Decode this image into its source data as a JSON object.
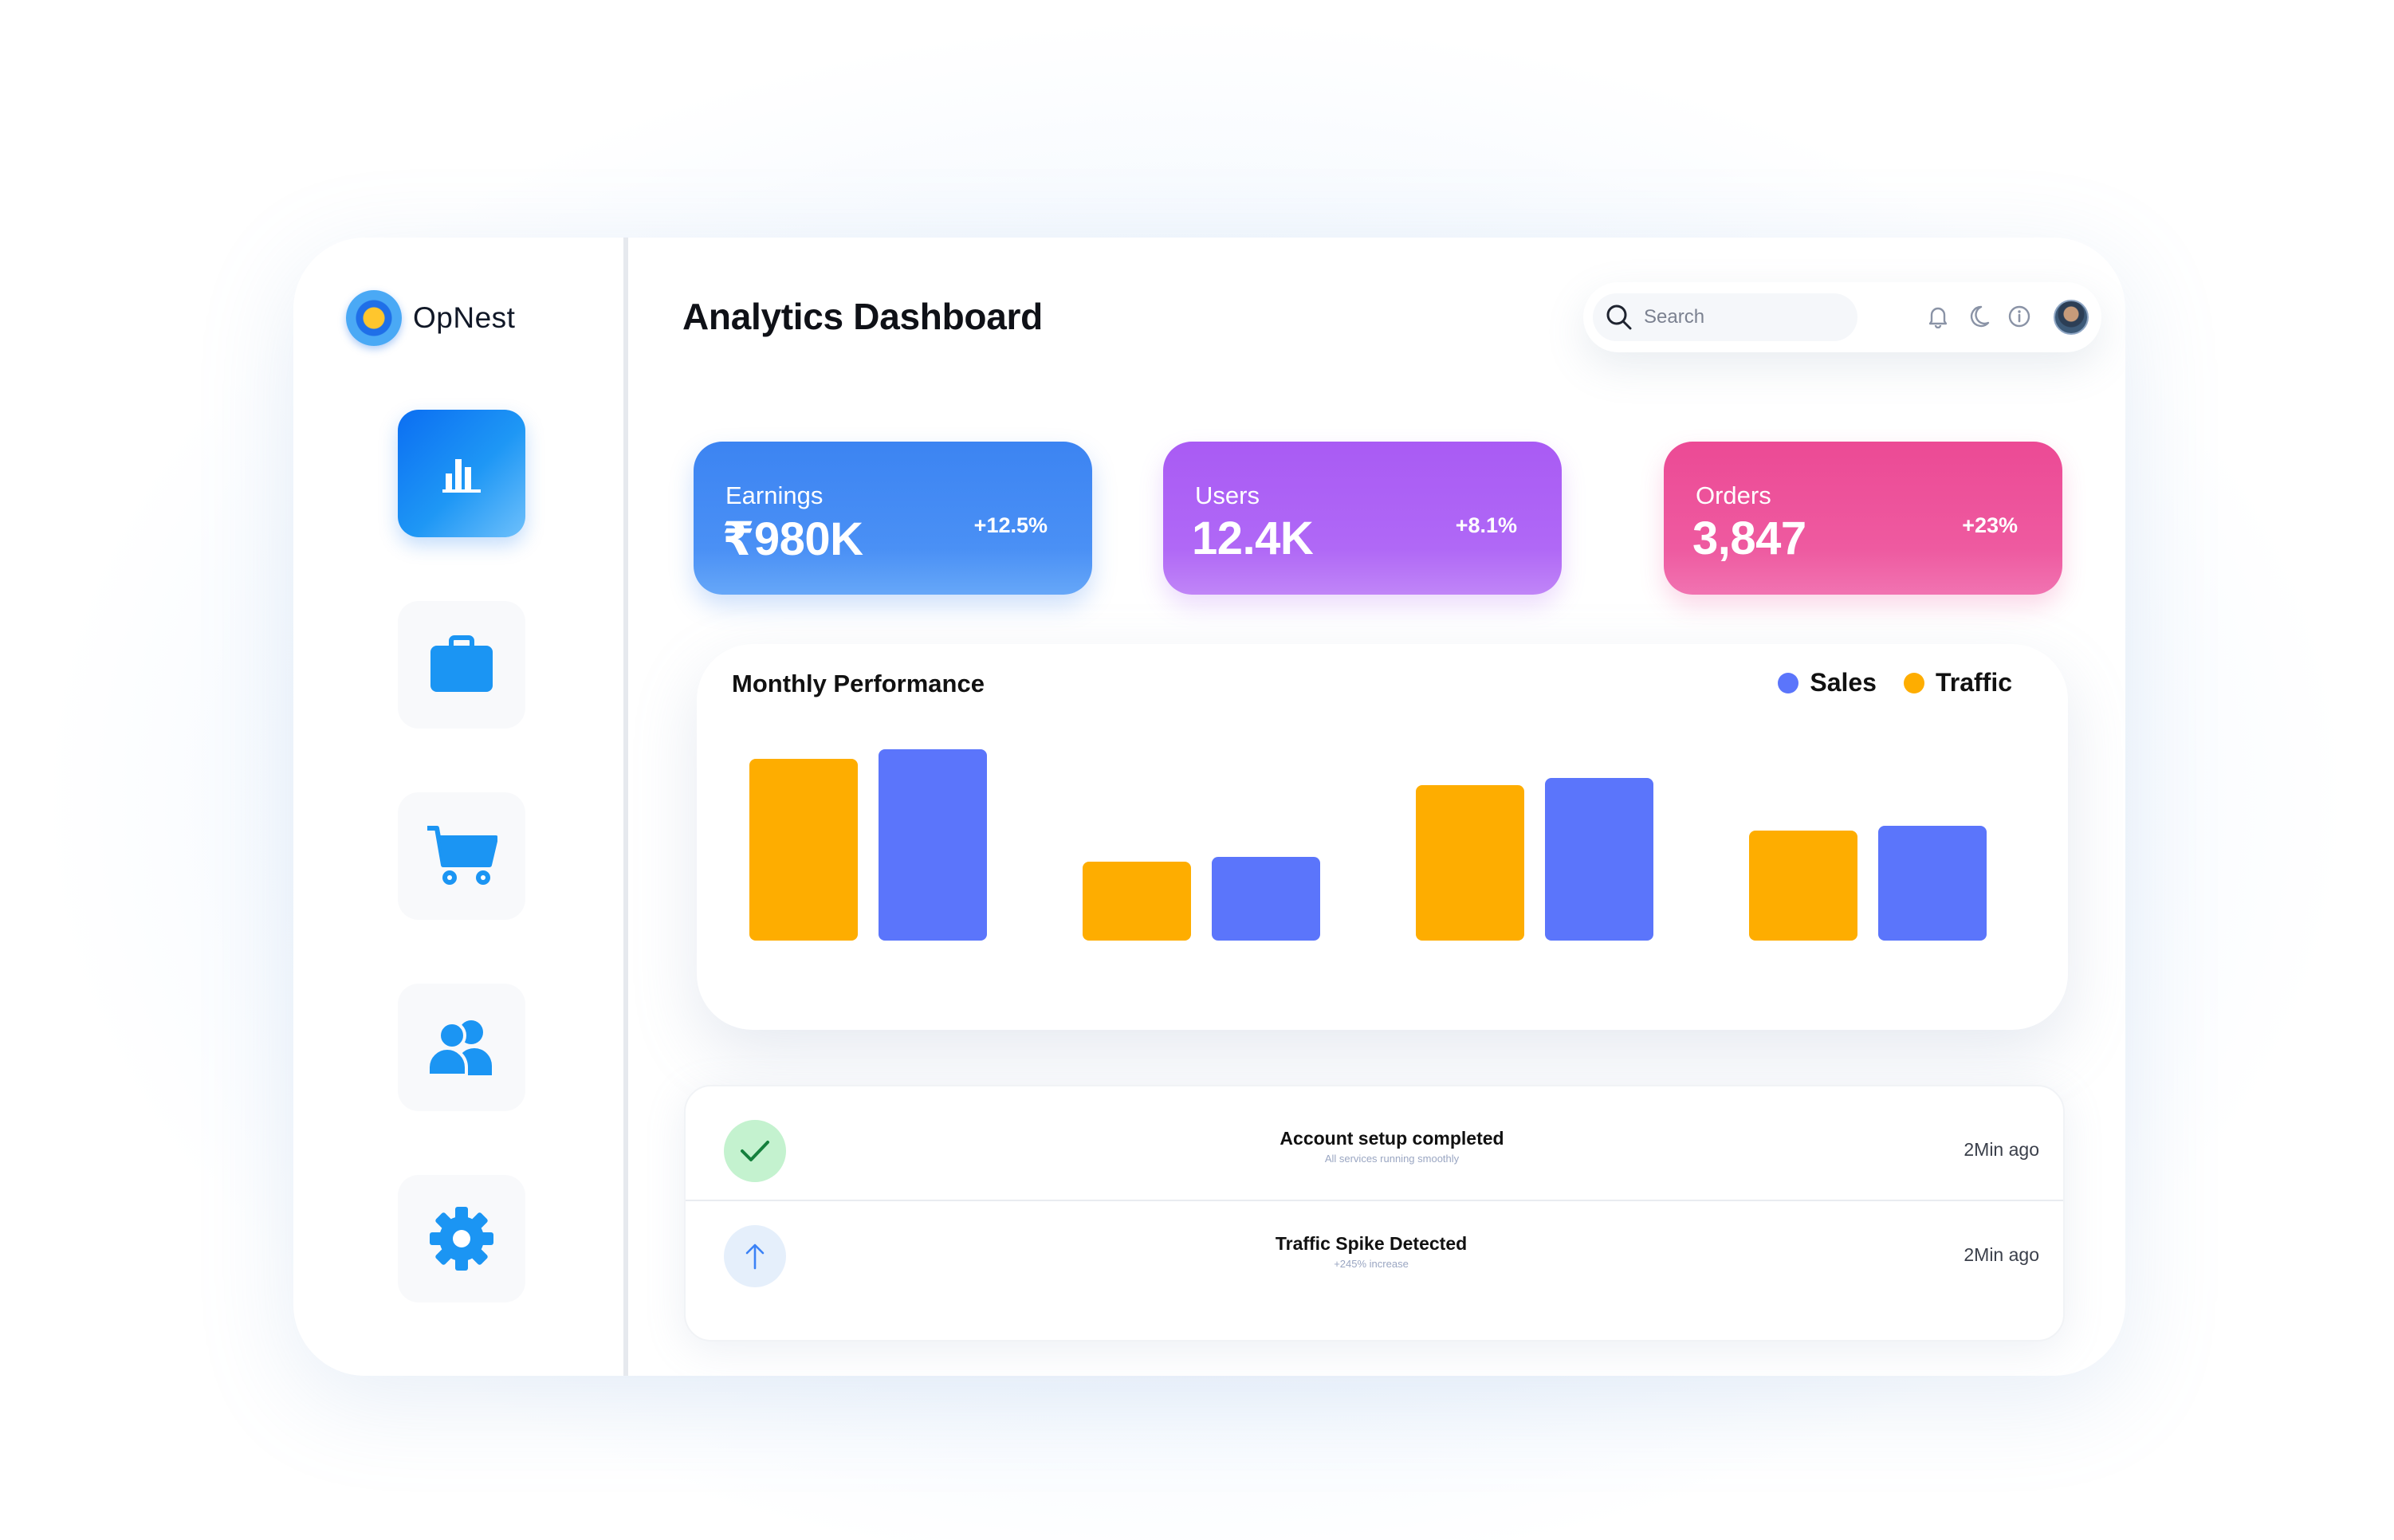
{
  "brand": {
    "name": "OpNest"
  },
  "sidebar": {
    "items": [
      {
        "name": "analytics",
        "icon": "bar-chart-icon",
        "active": true
      },
      {
        "name": "portfolio",
        "icon": "briefcase-icon",
        "active": false
      },
      {
        "name": "orders",
        "icon": "cart-icon",
        "active": false
      },
      {
        "name": "users",
        "icon": "users-icon",
        "active": false
      },
      {
        "name": "settings",
        "icon": "gear-icon",
        "active": false
      }
    ]
  },
  "header": {
    "title": "Analytics Dashboard",
    "search_placeholder": "Search",
    "icons": [
      "bell-icon",
      "moon-icon",
      "info-icon",
      "avatar"
    ]
  },
  "stats": [
    {
      "label": "Earnings",
      "value": "₹980K",
      "change": "+12.5%",
      "color": "#3c84f2"
    },
    {
      "label": "Users",
      "value": "12.4K",
      "change": "+8.1%",
      "color": "#a95bf4"
    },
    {
      "label": "Orders",
      "value": "3,847",
      "change": "+23%",
      "color": "#ec4a95"
    }
  ],
  "chart": {
    "title": "Monthly Performance",
    "legend": [
      {
        "label": "Sales",
        "color": "#5b75fb"
      },
      {
        "label": "Traffic",
        "color": "#fead00"
      }
    ]
  },
  "chart_data": {
    "type": "bar",
    "title": "Monthly Performance",
    "categories": [
      "",
      "",
      "",
      ""
    ],
    "series": [
      {
        "name": "Traffic",
        "color": "#fead00",
        "values": [
          76,
          33,
          65,
          46
        ]
      },
      {
        "name": "Sales",
        "color": "#5b75fb",
        "values": [
          80,
          35,
          68,
          48
        ]
      }
    ],
    "ylim": [
      0,
      100
    ],
    "grid": false,
    "legend_position": "top-right"
  },
  "activity": [
    {
      "icon": "check-icon",
      "title": "Account setup completed",
      "subtitle": "All services running smoothly",
      "time": "2Min ago"
    },
    {
      "icon": "arrow-up-icon",
      "title": "Traffic Spike Detected",
      "subtitle": "+245% increase",
      "time": "2Min ago"
    }
  ]
}
